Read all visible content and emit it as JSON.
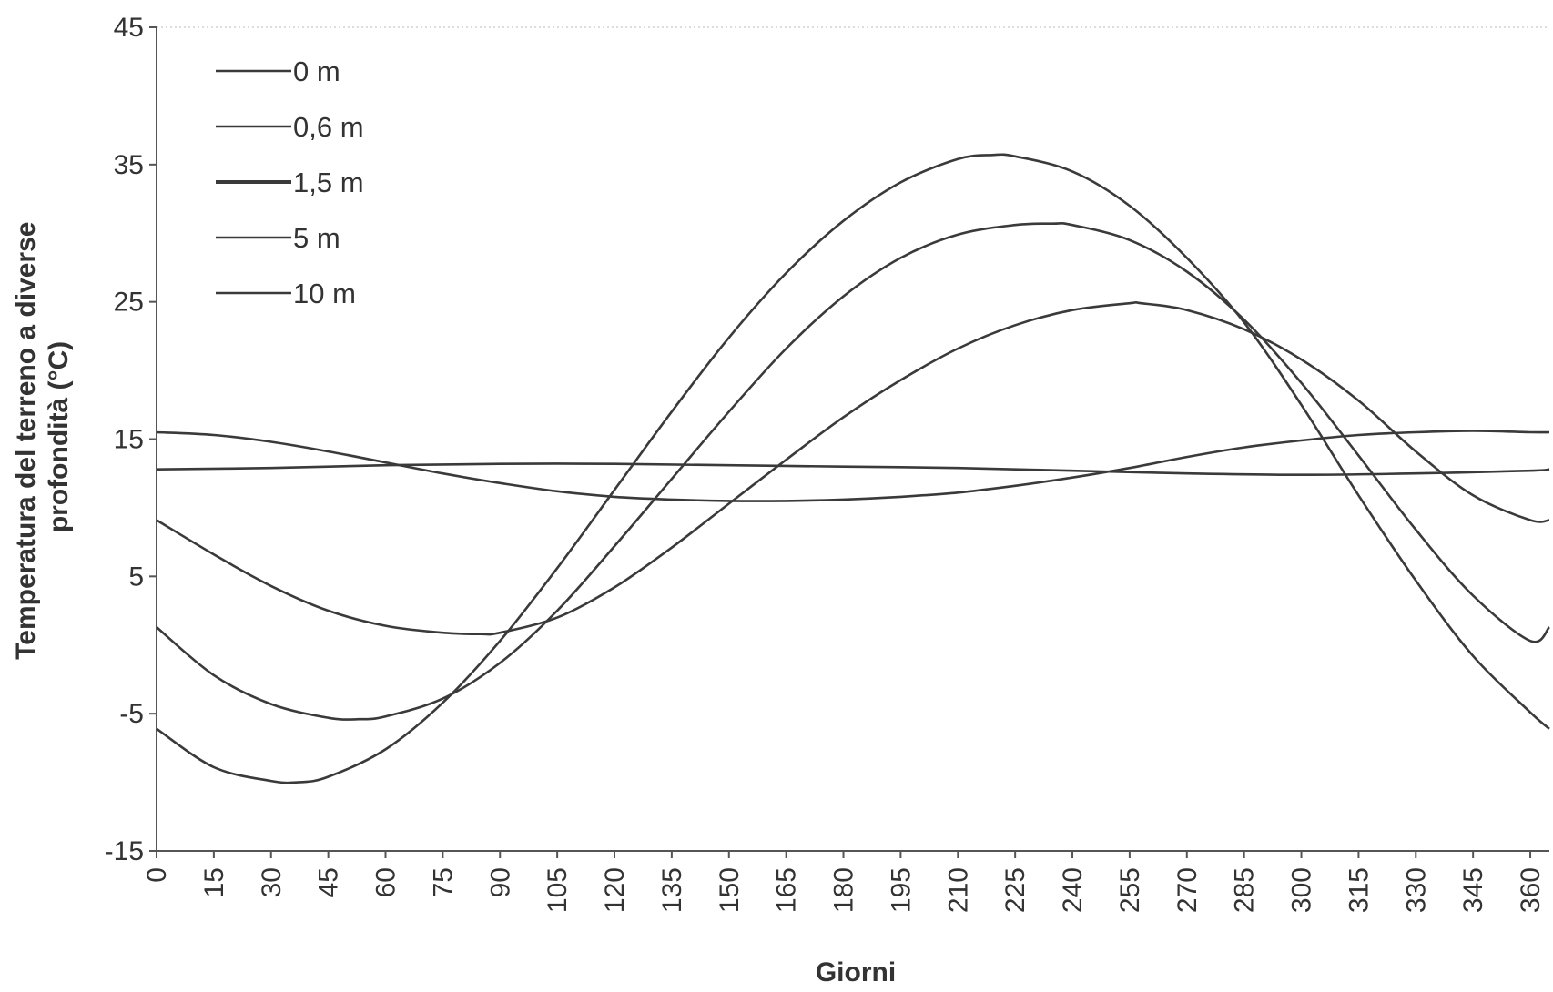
{
  "chart_data": {
    "type": "line",
    "xlabel": "Giorni",
    "ylabel_lines": [
      "Temperatura del terreno a diverse",
      "profondità (°C)"
    ],
    "xlim": [
      0,
      365
    ],
    "ylim": [
      -15,
      45
    ],
    "xticks": [
      "0",
      "15",
      "30",
      "45",
      "60",
      "75",
      "90",
      "105",
      "120",
      "135",
      "150",
      "165",
      "180",
      "195",
      "210",
      "225",
      "240",
      "255",
      "270",
      "285",
      "300",
      "315",
      "330",
      "345",
      "360"
    ],
    "yticks": [
      "45",
      "35",
      "25",
      "15",
      "5",
      "-5",
      "-15"
    ],
    "yticks_values": [
      45,
      35,
      25,
      15,
      5,
      -5,
      -15
    ],
    "grid": false,
    "legend_position": "top-left",
    "line_color": "#3a3a3a",
    "series": [
      {
        "name": "0 m",
        "x": [
          0,
          15,
          30,
          37,
          45,
          60,
          75,
          90,
          105,
          120,
          135,
          150,
          165,
          180,
          195,
          210,
          219,
          225,
          240,
          255,
          270,
          285,
          300,
          315,
          330,
          345,
          360,
          365
        ],
        "y": [
          -6.1,
          -8.9,
          -9.9,
          -10.0,
          -9.6,
          -7.6,
          -4.2,
          0.3,
          5.6,
          11.3,
          17.0,
          22.4,
          27.1,
          30.9,
          33.7,
          35.4,
          35.7,
          35.6,
          34.5,
          32.0,
          28.2,
          23.5,
          17.5,
          10.9,
          4.7,
          -0.8,
          -4.9,
          -6.1
        ]
      },
      {
        "name": "0,6 m",
        "x": [
          0,
          15,
          30,
          45,
          53,
          60,
          75,
          90,
          105,
          120,
          135,
          150,
          165,
          180,
          195,
          210,
          225,
          235,
          240,
          255,
          270,
          285,
          300,
          315,
          330,
          345,
          360,
          365
        ],
        "y": [
          1.3,
          -2.2,
          -4.3,
          -5.3,
          -5.4,
          -5.2,
          -3.9,
          -1.3,
          2.5,
          7.2,
          12.1,
          17.0,
          21.6,
          25.4,
          28.2,
          29.9,
          30.6,
          30.7,
          30.6,
          29.5,
          27.2,
          23.7,
          19.1,
          13.8,
          8.4,
          3.6,
          0.3,
          1.3
        ]
      },
      {
        "name": "1,5 m",
        "x": [
          0,
          15,
          30,
          45,
          60,
          75,
          85,
          90,
          105,
          120,
          135,
          150,
          165,
          180,
          195,
          210,
          225,
          240,
          255,
          258,
          270,
          285,
          300,
          315,
          330,
          345,
          360,
          365
        ],
        "y": [
          9.1,
          6.6,
          4.3,
          2.5,
          1.4,
          0.9,
          0.8,
          0.9,
          2.0,
          4.2,
          7.1,
          10.3,
          13.5,
          16.6,
          19.3,
          21.6,
          23.3,
          24.4,
          24.9,
          24.9,
          24.4,
          23.0,
          20.8,
          17.8,
          14.1,
          10.9,
          9.1,
          9.1
        ]
      },
      {
        "name": "5 m",
        "x": [
          0,
          15,
          30,
          45,
          60,
          75,
          90,
          105,
          120,
          135,
          150,
          165,
          180,
          195,
          210,
          225,
          240,
          255,
          270,
          285,
          300,
          315,
          330,
          345,
          360,
          365
        ],
        "y": [
          15.5,
          15.3,
          14.8,
          14.1,
          13.3,
          12.5,
          11.8,
          11.2,
          10.8,
          10.6,
          10.5,
          10.5,
          10.6,
          10.8,
          11.1,
          11.6,
          12.2,
          12.9,
          13.7,
          14.4,
          14.9,
          15.3,
          15.5,
          15.6,
          15.5,
          15.5
        ]
      },
      {
        "name": "10 m",
        "x": [
          0,
          30,
          60,
          90,
          120,
          150,
          180,
          210,
          240,
          270,
          300,
          330,
          360,
          365
        ],
        "y": [
          12.8,
          12.9,
          13.1,
          13.2,
          13.2,
          13.1,
          13.0,
          12.9,
          12.7,
          12.5,
          12.4,
          12.5,
          12.7,
          12.8
        ]
      }
    ]
  }
}
